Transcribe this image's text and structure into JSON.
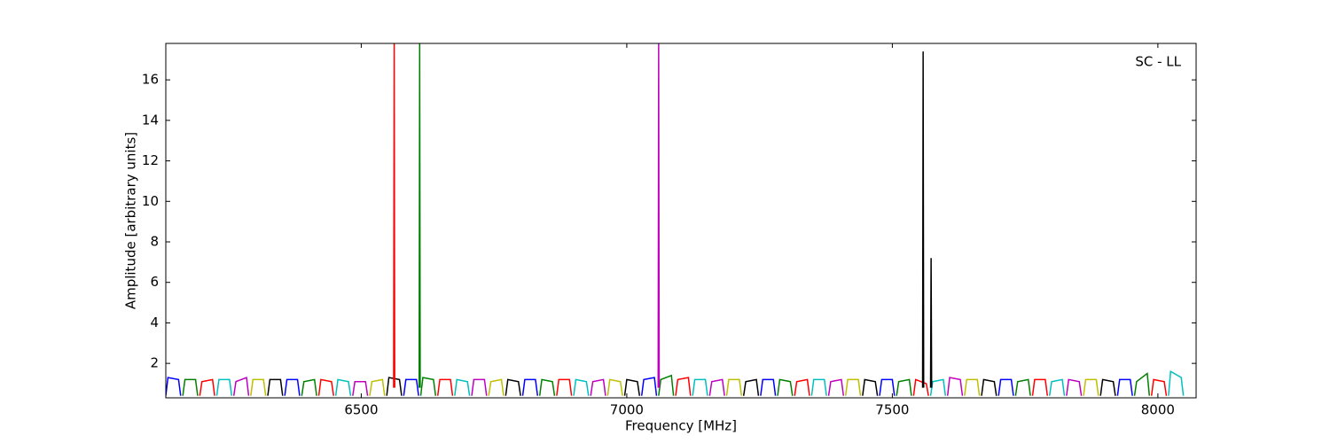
{
  "chart_data": {
    "type": "line",
    "annotation": "SC - LL",
    "xlabel": "Frequency [MHz]",
    "ylabel": "Amplitude [arbitrary units]",
    "xlim": [
      6132,
      8072
    ],
    "ylim": [
      0.3,
      17.8
    ],
    "xticks": [
      6500,
      7000,
      7500,
      8000
    ],
    "yticks": [
      2,
      4,
      6,
      8,
      10,
      12,
      14,
      16
    ],
    "series": [
      {
        "color": "#0000ff",
        "x": [
          6132,
          6136,
          6156,
          6160
        ],
        "values": [
          0.4,
          1.3,
          1.2,
          0.4
        ]
      },
      {
        "color": "#008000",
        "x": [
          6164,
          6168,
          6188,
          6192
        ],
        "values": [
          0.4,
          1.2,
          1.2,
          0.4
        ]
      },
      {
        "color": "#ff0000",
        "x": [
          6196,
          6200,
          6220,
          6224
        ],
        "values": [
          0.4,
          1.1,
          1.2,
          0.4
        ]
      },
      {
        "color": "#00bfbf",
        "x": [
          6228,
          6232,
          6252,
          6256
        ],
        "values": [
          0.4,
          1.2,
          1.2,
          0.4
        ]
      },
      {
        "color": "#bf00bf",
        "x": [
          6260,
          6264,
          6284,
          6288
        ],
        "values": [
          0.4,
          1.1,
          1.3,
          0.4
        ]
      },
      {
        "color": "#bfbf00",
        "x": [
          6292,
          6296,
          6316,
          6320
        ],
        "values": [
          0.4,
          1.2,
          1.2,
          0.4
        ]
      },
      {
        "color": "#000000",
        "x": [
          6324,
          6328,
          6348,
          6352
        ],
        "values": [
          0.4,
          1.2,
          1.2,
          0.4
        ]
      },
      {
        "color": "#0000ff",
        "x": [
          6356,
          6360,
          6380,
          6384
        ],
        "values": [
          0.4,
          1.2,
          1.2,
          0.4
        ]
      },
      {
        "color": "#008000",
        "x": [
          6388,
          6392,
          6412,
          6416
        ],
        "values": [
          0.4,
          1.1,
          1.2,
          0.4
        ]
      },
      {
        "color": "#ff0000",
        "x": [
          6420,
          6424,
          6444,
          6448
        ],
        "values": [
          0.4,
          1.2,
          1.1,
          0.4
        ]
      },
      {
        "color": "#00bfbf",
        "x": [
          6452,
          6456,
          6476,
          6480
        ],
        "values": [
          0.4,
          1.2,
          1.1,
          0.4
        ]
      },
      {
        "color": "#bf00bf",
        "x": [
          6484,
          6488,
          6508,
          6512
        ],
        "values": [
          0.4,
          1.1,
          1.1,
          0.4
        ]
      },
      {
        "color": "#bfbf00",
        "x": [
          6516,
          6520,
          6540,
          6544
        ],
        "values": [
          0.4,
          1.1,
          1.2,
          0.4
        ]
      },
      {
        "color": "#000000",
        "x": [
          6548,
          6552,
          6572,
          6576
        ],
        "values": [
          0.4,
          1.3,
          1.2,
          0.4
        ]
      },
      {
        "color": "#0000ff",
        "x": [
          6580,
          6584,
          6604,
          6608
        ],
        "values": [
          0.4,
          1.2,
          1.2,
          0.4
        ]
      },
      {
        "color": "#008000",
        "x": [
          6612,
          6616,
          6636,
          6640
        ],
        "values": [
          0.4,
          1.3,
          1.2,
          0.4
        ]
      },
      {
        "color": "#ff0000",
        "x": [
          6644,
          6648,
          6668,
          6672
        ],
        "values": [
          0.4,
          1.2,
          1.2,
          0.4
        ]
      },
      {
        "color": "#00bfbf",
        "x": [
          6676,
          6680,
          6700,
          6704
        ],
        "values": [
          0.4,
          1.2,
          1.1,
          0.4
        ]
      },
      {
        "color": "#bf00bf",
        "x": [
          6708,
          6712,
          6732,
          6736
        ],
        "values": [
          0.4,
          1.2,
          1.2,
          0.4
        ]
      },
      {
        "color": "#bfbf00",
        "x": [
          6740,
          6744,
          6764,
          6768
        ],
        "values": [
          0.4,
          1.1,
          1.2,
          0.4
        ]
      },
      {
        "color": "#000000",
        "x": [
          6772,
          6776,
          6796,
          6800
        ],
        "values": [
          0.4,
          1.2,
          1.1,
          0.4
        ]
      },
      {
        "color": "#0000ff",
        "x": [
          6804,
          6808,
          6828,
          6832
        ],
        "values": [
          0.4,
          1.2,
          1.2,
          0.4
        ]
      },
      {
        "color": "#008000",
        "x": [
          6836,
          6840,
          6860,
          6864
        ],
        "values": [
          0.4,
          1.2,
          1.1,
          0.4
        ]
      },
      {
        "color": "#ff0000",
        "x": [
          6868,
          6872,
          6892,
          6896
        ],
        "values": [
          0.4,
          1.2,
          1.2,
          0.4
        ]
      },
      {
        "color": "#00bfbf",
        "x": [
          6900,
          6904,
          6924,
          6928
        ],
        "values": [
          0.4,
          1.2,
          1.1,
          0.4
        ]
      },
      {
        "color": "#bf00bf",
        "x": [
          6932,
          6936,
          6956,
          6960
        ],
        "values": [
          0.4,
          1.1,
          1.2,
          0.4
        ]
      },
      {
        "color": "#bfbf00",
        "x": [
          6964,
          6968,
          6988,
          6992
        ],
        "values": [
          0.4,
          1.2,
          1.1,
          0.4
        ]
      },
      {
        "color": "#000000",
        "x": [
          6996,
          7000,
          7020,
          7024
        ],
        "values": [
          0.4,
          1.2,
          1.1,
          0.4
        ]
      },
      {
        "color": "#0000ff",
        "x": [
          7028,
          7032,
          7052,
          7056
        ],
        "values": [
          0.4,
          1.2,
          1.3,
          0.4
        ]
      },
      {
        "color": "#008000",
        "x": [
          7060,
          7064,
          7084,
          7088
        ],
        "values": [
          0.4,
          1.2,
          1.4,
          0.4
        ]
      },
      {
        "color": "#ff0000",
        "x": [
          7092,
          7096,
          7116,
          7120
        ],
        "values": [
          0.4,
          1.2,
          1.3,
          0.4
        ]
      },
      {
        "color": "#00bfbf",
        "x": [
          7124,
          7128,
          7148,
          7152
        ],
        "values": [
          0.4,
          1.2,
          1.2,
          0.4
        ]
      },
      {
        "color": "#bf00bf",
        "x": [
          7156,
          7160,
          7180,
          7184
        ],
        "values": [
          0.4,
          1.1,
          1.2,
          0.4
        ]
      },
      {
        "color": "#bfbf00",
        "x": [
          7188,
          7192,
          7212,
          7216
        ],
        "values": [
          0.4,
          1.2,
          1.2,
          0.4
        ]
      },
      {
        "color": "#000000",
        "x": [
          7220,
          7224,
          7244,
          7248
        ],
        "values": [
          0.4,
          1.1,
          1.2,
          0.4
        ]
      },
      {
        "color": "#0000ff",
        "x": [
          7252,
          7256,
          7276,
          7280
        ],
        "values": [
          0.4,
          1.2,
          1.2,
          0.4
        ]
      },
      {
        "color": "#008000",
        "x": [
          7284,
          7288,
          7308,
          7312
        ],
        "values": [
          0.4,
          1.2,
          1.1,
          0.4
        ]
      },
      {
        "color": "#ff0000",
        "x": [
          7316,
          7320,
          7340,
          7344
        ],
        "values": [
          0.4,
          1.1,
          1.2,
          0.4
        ]
      },
      {
        "color": "#00bfbf",
        "x": [
          7348,
          7352,
          7372,
          7376
        ],
        "values": [
          0.4,
          1.2,
          1.2,
          0.4
        ]
      },
      {
        "color": "#bf00bf",
        "x": [
          7380,
          7384,
          7404,
          7408
        ],
        "values": [
          0.4,
          1.1,
          1.2,
          0.4
        ]
      },
      {
        "color": "#bfbf00",
        "x": [
          7412,
          7416,
          7436,
          7440
        ],
        "values": [
          0.4,
          1.2,
          1.2,
          0.4
        ]
      },
      {
        "color": "#000000",
        "x": [
          7444,
          7448,
          7468,
          7472
        ],
        "values": [
          0.4,
          1.2,
          1.1,
          0.4
        ]
      },
      {
        "color": "#0000ff",
        "x": [
          7476,
          7480,
          7500,
          7504
        ],
        "values": [
          0.4,
          1.2,
          1.2,
          0.4
        ]
      },
      {
        "color": "#008000",
        "x": [
          7508,
          7512,
          7532,
          7536
        ],
        "values": [
          0.4,
          1.1,
          1.2,
          0.4
        ]
      },
      {
        "color": "#ff0000",
        "x": [
          7540,
          7544,
          7564,
          7568
        ],
        "values": [
          0.4,
          1.2,
          1.0,
          0.4
        ]
      },
      {
        "color": "#00bfbf",
        "x": [
          7572,
          7576,
          7596,
          7600
        ],
        "values": [
          0.4,
          1.1,
          1.2,
          0.4
        ]
      },
      {
        "color": "#bf00bf",
        "x": [
          7604,
          7608,
          7628,
          7632
        ],
        "values": [
          0.4,
          1.3,
          1.2,
          0.4
        ]
      },
      {
        "color": "#bfbf00",
        "x": [
          7636,
          7640,
          7660,
          7664
        ],
        "values": [
          0.4,
          1.2,
          1.2,
          0.4
        ]
      },
      {
        "color": "#000000",
        "x": [
          7668,
          7672,
          7692,
          7696
        ],
        "values": [
          0.4,
          1.2,
          1.1,
          0.4
        ]
      },
      {
        "color": "#0000ff",
        "x": [
          7700,
          7704,
          7724,
          7728
        ],
        "values": [
          0.4,
          1.2,
          1.2,
          0.4
        ]
      },
      {
        "color": "#008000",
        "x": [
          7732,
          7736,
          7756,
          7760
        ],
        "values": [
          0.4,
          1.1,
          1.2,
          0.4
        ]
      },
      {
        "color": "#ff0000",
        "x": [
          7764,
          7768,
          7788,
          7792
        ],
        "values": [
          0.4,
          1.2,
          1.2,
          0.4
        ]
      },
      {
        "color": "#00bfbf",
        "x": [
          7796,
          7800,
          7820,
          7824
        ],
        "values": [
          0.4,
          1.1,
          1.2,
          0.4
        ]
      },
      {
        "color": "#bf00bf",
        "x": [
          7828,
          7832,
          7852,
          7856
        ],
        "values": [
          0.4,
          1.2,
          1.1,
          0.4
        ]
      },
      {
        "color": "#bfbf00",
        "x": [
          7860,
          7864,
          7884,
          7888
        ],
        "values": [
          0.4,
          1.2,
          1.2,
          0.4
        ]
      },
      {
        "color": "#000000",
        "x": [
          7892,
          7896,
          7916,
          7920
        ],
        "values": [
          0.4,
          1.2,
          1.1,
          0.4
        ]
      },
      {
        "color": "#0000ff",
        "x": [
          7924,
          7928,
          7948,
          7952
        ],
        "values": [
          0.4,
          1.2,
          1.2,
          0.4
        ]
      },
      {
        "color": "#008000",
        "x": [
          7956,
          7960,
          7980,
          7984
        ],
        "values": [
          0.4,
          1.1,
          1.5,
          0.4
        ]
      },
      {
        "color": "#ff0000",
        "x": [
          7988,
          7992,
          8012,
          8016
        ],
        "values": [
          0.4,
          1.2,
          1.1,
          0.4
        ]
      },
      {
        "color": "#00bfbf",
        "x": [
          8020,
          8024,
          8044,
          8048
        ],
        "values": [
          0.4,
          1.6,
          1.3,
          0.4
        ]
      },
      {
        "color": "#ff0000",
        "x": [
          6561,
          6562,
          6563
        ],
        "values": [
          0.8,
          17.8,
          0.8
        ]
      },
      {
        "color": "#008000",
        "x": [
          6609,
          6610,
          6611
        ],
        "values": [
          0.8,
          17.8,
          0.8
        ]
      },
      {
        "color": "#bf00bf",
        "x": [
          7059,
          7060,
          7061
        ],
        "values": [
          0.8,
          17.8,
          0.8
        ]
      },
      {
        "color": "#000000",
        "x": [
          7557,
          7558,
          7559
        ],
        "values": [
          0.8,
          17.4,
          0.8
        ]
      },
      {
        "color": "#000000",
        "x": [
          7572,
          7573,
          7574
        ],
        "values": [
          0.8,
          7.2,
          0.8
        ]
      }
    ]
  }
}
